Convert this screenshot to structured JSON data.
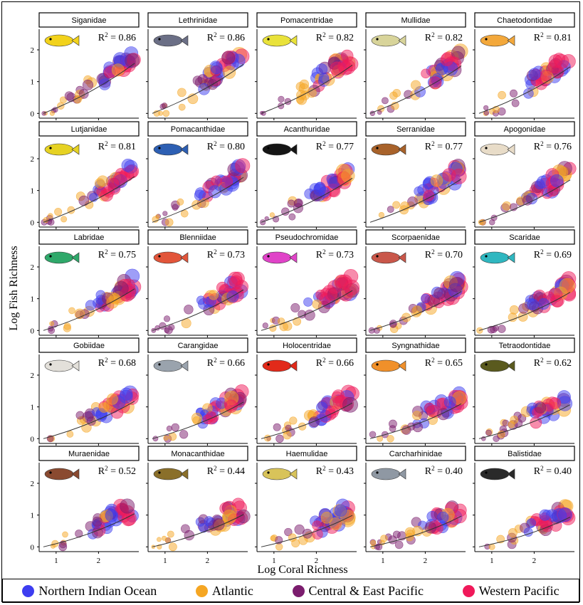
{
  "chart_data": {
    "type": "scatter",
    "xlabel": "Log Coral Richness",
    "ylabel": "Log Fish Richness",
    "x_ticks": [
      1,
      2
    ],
    "y_ticks": [
      0,
      1,
      2
    ],
    "xlim": [
      0.6,
      2.95
    ],
    "ylim": [
      -0.15,
      2.65
    ],
    "r2_prefix": "R",
    "r2_exp": "2",
    "legend_position": "bottom",
    "legend": [
      {
        "name": "Northern Indian Ocean",
        "color": "#3d3df0"
      },
      {
        "name": "Atlantic",
        "color": "#f5a623"
      },
      {
        "name": "Central & East Pacific",
        "color": "#7b1d6e"
      },
      {
        "name": "Western Pacific",
        "color": "#f0195a"
      }
    ],
    "panels": [
      {
        "family": "Siganidae",
        "r2": "= 0.86",
        "fish_color": "#f2d21b"
      },
      {
        "family": "Lethrinidae",
        "r2": "= 0.86",
        "fish_color": "#6b6f86"
      },
      {
        "family": "Pomacentridae",
        "r2": "= 0.82",
        "fish_color": "#e9e23a"
      },
      {
        "family": "Mullidae",
        "r2": "= 0.82",
        "fish_color": "#d8d49a"
      },
      {
        "family": "Chaetodontidae",
        "r2": "= 0.81",
        "fish_color": "#f3a83b"
      },
      {
        "family": "Lutjanidae",
        "r2": "= 0.81",
        "fish_color": "#e6d223"
      },
      {
        "family": "Pomacanthidae",
        "r2": "= 0.80",
        "fish_color": "#2d5fb3"
      },
      {
        "family": "Acanthuridae",
        "r2": "= 0.77",
        "fish_color": "#151515"
      },
      {
        "family": "Serranidae",
        "r2": "= 0.77",
        "fish_color": "#a8622a"
      },
      {
        "family": "Apogonidae",
        "r2": "= 0.76",
        "fish_color": "#e8dcc8"
      },
      {
        "family": "Labridae",
        "r2": "= 0.75",
        "fish_color": "#2fa86a"
      },
      {
        "family": "Blenniidae",
        "r2": "= 0.73",
        "fish_color": "#e2553a"
      },
      {
        "family": "Pseudochromidae",
        "r2": "= 0.73",
        "fish_color": "#e043c8"
      },
      {
        "family": "Scorpaenidae",
        "r2": "= 0.70",
        "fish_color": "#c9574a"
      },
      {
        "family": "Scaridae",
        "r2": "= 0.69",
        "fish_color": "#2fb7c0"
      },
      {
        "family": "Gobiidae",
        "r2": "= 0.68",
        "fish_color": "#e3e0da"
      },
      {
        "family": "Carangidae",
        "r2": "= 0.66",
        "fish_color": "#9aa3ad"
      },
      {
        "family": "Holocentridae",
        "r2": "= 0.66",
        "fish_color": "#e22a1a"
      },
      {
        "family": "Syngnathidae",
        "r2": "= 0.65",
        "fish_color": "#f0902a"
      },
      {
        "family": "Tetraodontidae",
        "r2": "= 0.62",
        "fish_color": "#5a5a1e"
      },
      {
        "family": "Muraenidae",
        "r2": "= 0.52",
        "fish_color": "#8a4a30"
      },
      {
        "family": "Monacanthidae",
        "r2": "= 0.44",
        "fish_color": "#8a6f2a"
      },
      {
        "family": "Haemulidae",
        "r2": "= 0.43",
        "fish_color": "#d8c35a"
      },
      {
        "family": "Carcharhinidae",
        "r2": "= 0.40",
        "fish_color": "#8f98a3"
      },
      {
        "family": "Balistidae",
        "r2": "= 0.40",
        "fish_color": "#2a2a2a"
      }
    ],
    "notes": "Each panel shows one scatter point per reef site (estimated), colored by region, with point size scaling with richness, and a fitted trend line."
  }
}
